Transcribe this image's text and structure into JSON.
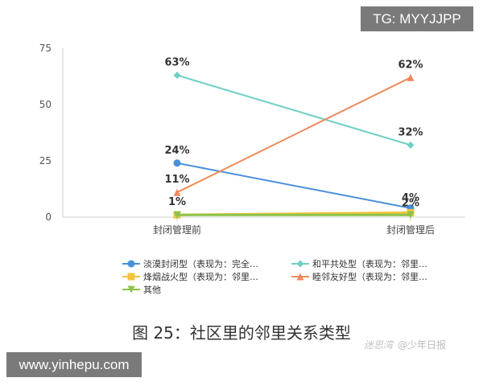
{
  "watermark_top": "TG: MYYJJPP",
  "watermark_bottom": "www.yinhepu.com",
  "caption": "图 25：社区里的邻里关系类型",
  "source": {
    "brand": "迷思湾",
    "name": "@少年日报"
  },
  "chart_data": {
    "type": "line",
    "categories": [
      "封闭管理前",
      "封闭管理后"
    ],
    "yticks": [
      0,
      25,
      50,
      75
    ],
    "ylim": [
      0,
      75
    ],
    "grid": false,
    "legend_position": "bottom",
    "series": [
      {
        "name": "淡漠封闭型（表现为：完全…",
        "values": [
          24,
          4
        ],
        "labels": [
          "24%",
          "4%"
        ],
        "color": "#4a90d9",
        "marker": "circle"
      },
      {
        "name": "和平共处型（表现为：邻里…",
        "values": [
          63,
          32
        ],
        "labels": [
          "63%",
          "32%"
        ],
        "color": "#6fcfc4",
        "marker": "diamond"
      },
      {
        "name": "烽烟战火型（表现为：邻里…",
        "values": [
          1,
          2
        ],
        "labels": [
          "1%",
          "2%"
        ],
        "color": "#f0c43c",
        "marker": "square"
      },
      {
        "name": "睦邻友好型（表现为：邻里…",
        "values": [
          11,
          62
        ],
        "labels": [
          "11%",
          "62%"
        ],
        "color": "#ef8a5b",
        "marker": "triangle"
      },
      {
        "name": "其他",
        "values": [
          1,
          1
        ],
        "labels": [
          "",
          ""
        ],
        "color": "#8cc34a",
        "marker": "triangle-down"
      }
    ]
  }
}
